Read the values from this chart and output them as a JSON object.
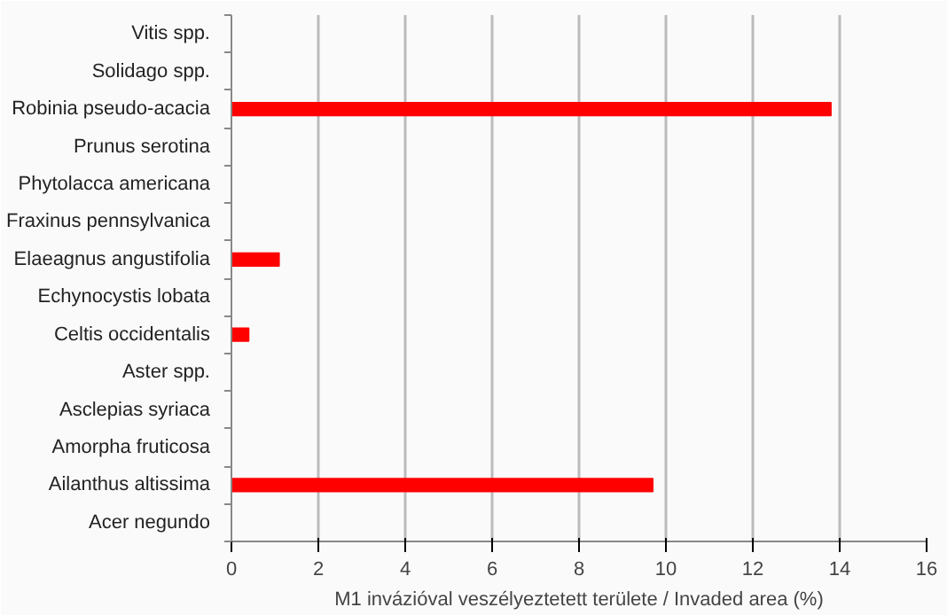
{
  "chart_data": {
    "type": "bar",
    "orientation": "horizontal",
    "xlabel": "M1 invázióval veszélyeztetett területe / Invaded area (%)",
    "categories": [
      "Vitis spp.",
      "Solidago spp.",
      "Robinia pseudo-acacia",
      "Prunus serotina",
      "Phytolacca americana",
      "Fraxinus pennsylvanica",
      "Elaeagnus angustifolia",
      "Echynocystis lobata",
      "Celtis occidentalis",
      "Aster spp.",
      "Asclepias syriaca",
      "Amorpha fruticosa",
      "Ailanthus altissima",
      "Acer negundo"
    ],
    "values": [
      0,
      0,
      13.8,
      0,
      0,
      0,
      1.1,
      0,
      0.4,
      0,
      0,
      0,
      9.7,
      0
    ],
    "color": "#ff0000",
    "xlim": [
      0,
      16
    ],
    "xticks": [
      0,
      2,
      4,
      6,
      8,
      10,
      12,
      14,
      16
    ],
    "grid": "x"
  }
}
